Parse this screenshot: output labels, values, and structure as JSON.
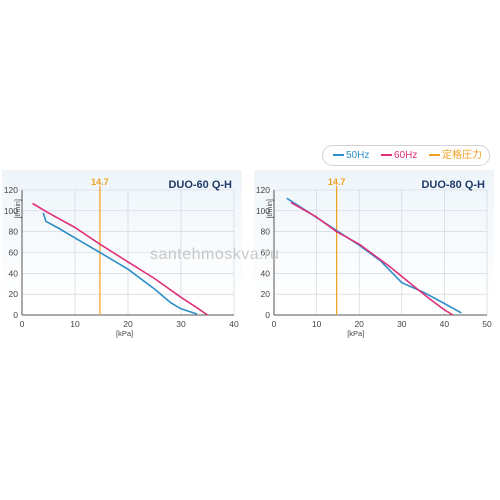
{
  "legend": [
    {
      "label": "50Hz",
      "color": "#2e8fc8"
    },
    {
      "label": "60Hz",
      "color": "#e0307a"
    },
    {
      "label": "定格圧力",
      "color": "#f0a020"
    }
  ],
  "watermark": "santehmoskva.ru",
  "chart_data": [
    {
      "type": "line",
      "title": "DUO-60 Q-H",
      "xlabel": "[kPa]",
      "ylabel": "[ℓ/min]",
      "xlim": [
        0,
        40
      ],
      "ylim": [
        0,
        120
      ],
      "xticks": [
        0,
        10,
        20,
        30,
        40
      ],
      "yticks": [
        0,
        20,
        40,
        60,
        80,
        100,
        120
      ],
      "grid": true,
      "reference_line": {
        "x": 14.7,
        "label": "14.7",
        "color": "#f0a020"
      },
      "series": [
        {
          "name": "50Hz",
          "color": "#2e8fc8",
          "points": [
            [
              4,
              98
            ],
            [
              4.5,
              90
            ],
            [
              7,
              83
            ],
            [
              10,
              74
            ],
            [
              14.7,
              60
            ],
            [
              20,
              44
            ],
            [
              25,
              25
            ],
            [
              28,
              12
            ],
            [
              30,
              6
            ],
            [
              33,
              1
            ]
          ]
        },
        {
          "name": "60Hz",
          "color": "#e0307a",
          "points": [
            [
              2,
              107
            ],
            [
              5,
              98
            ],
            [
              10,
              84
            ],
            [
              14.7,
              68
            ],
            [
              20,
              51
            ],
            [
              25,
              35
            ],
            [
              30,
              17
            ],
            [
              33,
              7
            ],
            [
              35,
              0
            ]
          ]
        }
      ]
    },
    {
      "type": "line",
      "title": "DUO-80 Q-H",
      "xlabel": "[kPa]",
      "ylabel": "[ℓ/min]",
      "xlim": [
        0,
        50
      ],
      "ylim": [
        0,
        120
      ],
      "xticks": [
        0,
        10,
        20,
        30,
        40,
        50
      ],
      "yticks": [
        0,
        20,
        40,
        60,
        80,
        100,
        120
      ],
      "grid": true,
      "reference_line": {
        "x": 14.7,
        "label": "14.7",
        "color": "#f0a020"
      },
      "series": [
        {
          "name": "50Hz",
          "color": "#2e8fc8",
          "points": [
            [
              3,
              112
            ],
            [
              8,
              99
            ],
            [
              14.7,
              81
            ],
            [
              20,
              67
            ],
            [
              25,
              52
            ],
            [
              30,
              31
            ],
            [
              35,
              22
            ],
            [
              40,
              11
            ],
            [
              44,
              2
            ]
          ]
        },
        {
          "name": "60Hz",
          "color": "#e0307a",
          "points": [
            [
              4,
              108
            ],
            [
              10,
              94
            ],
            [
              14.7,
              80
            ],
            [
              20,
              68
            ],
            [
              27,
              47
            ],
            [
              33,
              27
            ],
            [
              37,
              14
            ],
            [
              40,
              5
            ],
            [
              42,
              0
            ]
          ]
        }
      ]
    }
  ]
}
